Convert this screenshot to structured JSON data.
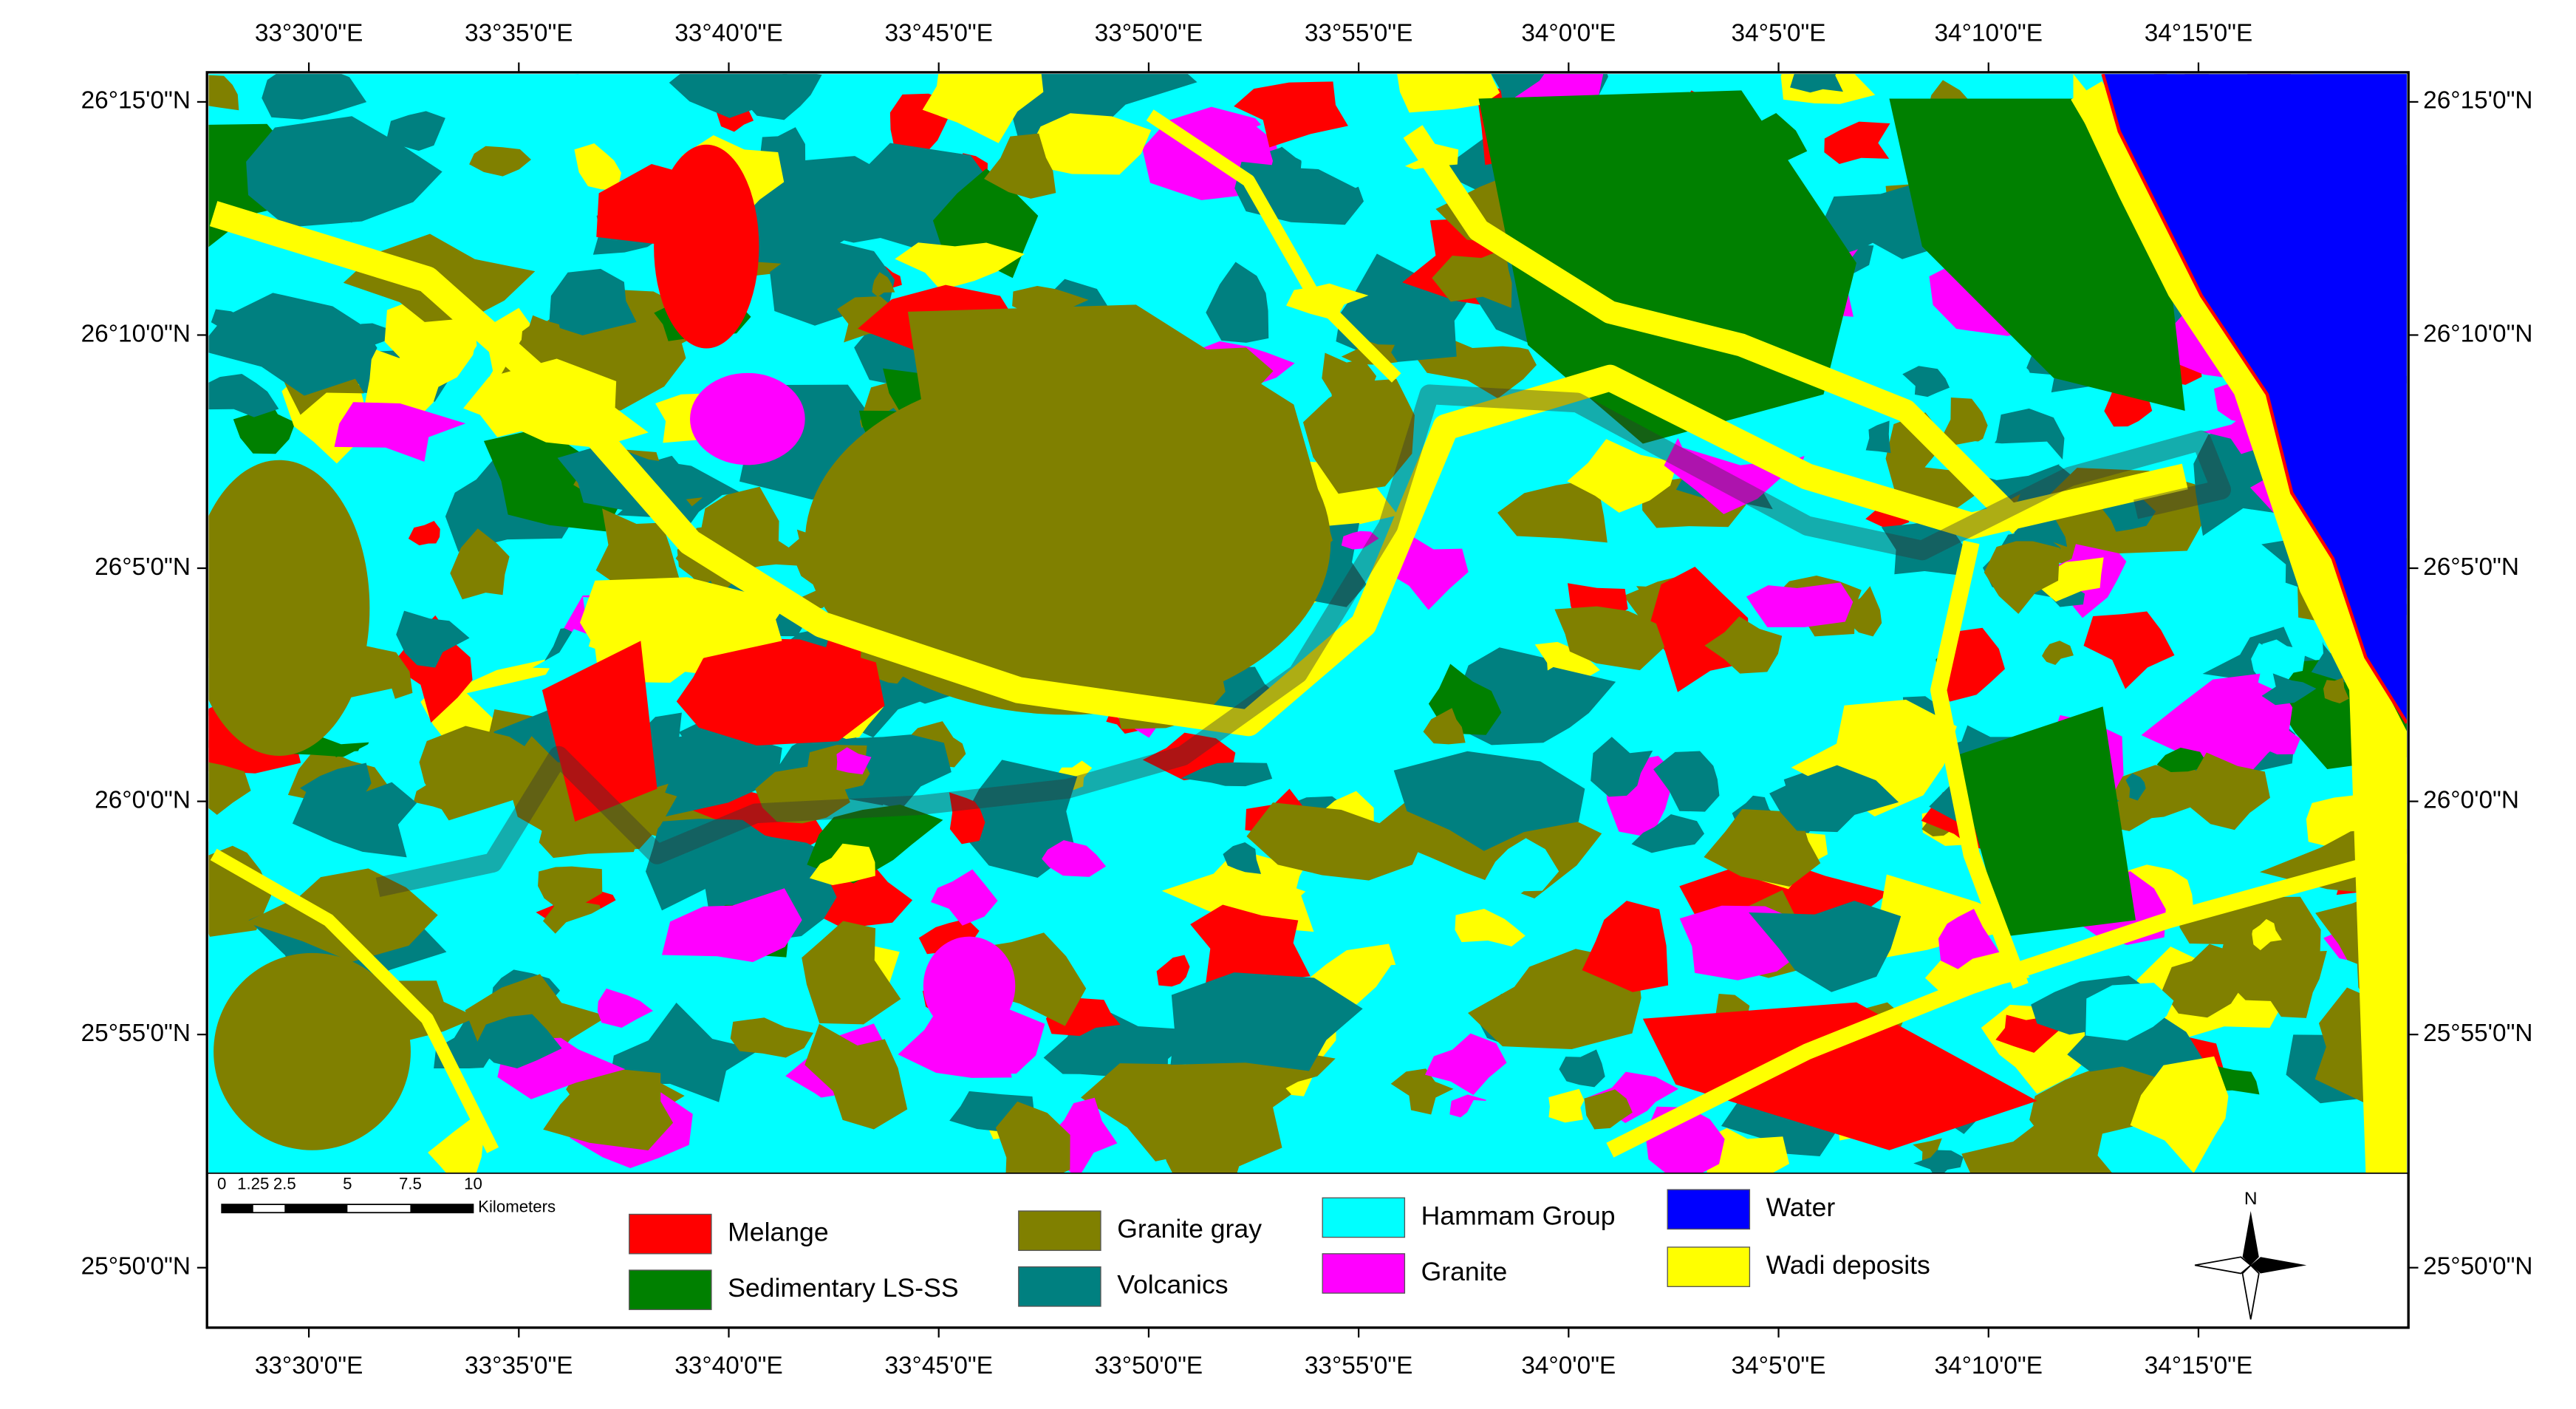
{
  "map": {
    "longitude_labels": [
      "33°30'0\"E",
      "33°35'0\"E",
      "33°40'0\"E",
      "33°45'0\"E",
      "33°50'0\"E",
      "33°55'0\"E",
      "34°0'0\"E",
      "34°5'0\"E",
      "34°10'0\"E",
      "34°15'0\"E"
    ],
    "latitude_labels": [
      "26°15'0\"N",
      "26°10'0\"N",
      "26°5'0\"N",
      "26°0'0\"N",
      "25°55'0\"N",
      "25°50'0\"N"
    ],
    "legend": [
      {
        "label": "Melange",
        "color": "#ff0000"
      },
      {
        "label": "Sedimentary LS-SS",
        "color": "#008000"
      },
      {
        "label": "Granite gray",
        "color": "#808000"
      },
      {
        "label": "Volcanics",
        "color": "#008080"
      },
      {
        "label": "Hammam Group",
        "color": "#00ffff"
      },
      {
        "label": "Granite",
        "color": "#ff00ff"
      },
      {
        "label": "Water",
        "color": "#0000ff"
      },
      {
        "label": "Wadi deposits",
        "color": "#ffff00"
      }
    ],
    "scale_bar": {
      "labels": [
        "0",
        "1.25",
        "2.5",
        "5",
        "7.5",
        "10"
      ],
      "unit": "Kilometers"
    },
    "north_arrow": "N"
  }
}
